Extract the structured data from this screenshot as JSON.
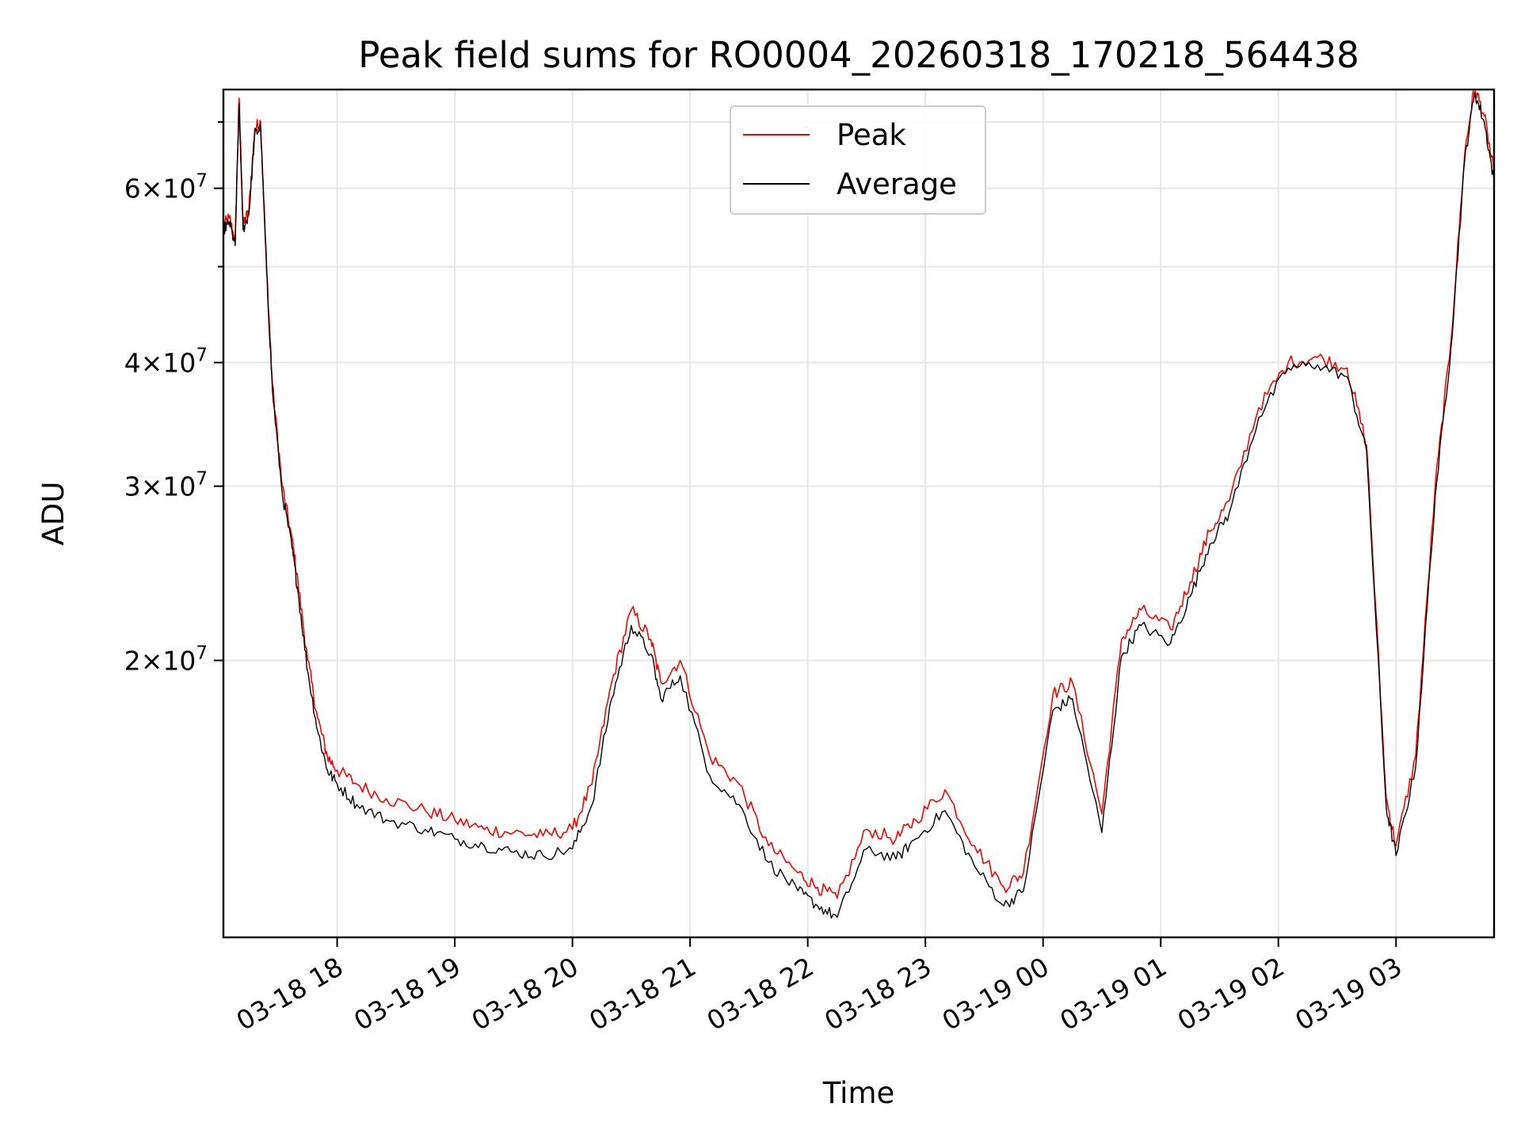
{
  "chart_data": {
    "type": "line",
    "title": "Peak field sums for RO0004_20260318_170218_564438",
    "xlabel": "Time",
    "ylabel": "ADU",
    "yscale": "log",
    "ylim": [
      10500000,
      75500000
    ],
    "xlim": [
      "03-18 17:02",
      "03-19 03:50"
    ],
    "grid": true,
    "legend_position": "top-center",
    "x_ticks": [
      "03-18 18",
      "03-18 19",
      "03-18 20",
      "03-18 21",
      "03-18 22",
      "03-18 23",
      "03-19 00",
      "03-19 01",
      "03-19 02",
      "03-19 03"
    ],
    "y_ticks": [
      {
        "value": 20000000,
        "mantissa": "2",
        "exponent": "7"
      },
      {
        "value": 30000000,
        "mantissa": "3",
        "exponent": "7"
      },
      {
        "value": 40000000,
        "mantissa": "4",
        "exponent": "7"
      },
      {
        "value": 60000000,
        "mantissa": "6",
        "exponent": "7"
      }
    ],
    "x": [
      "03-18 17:02",
      "03-18 17:05",
      "03-18 17:08",
      "03-18 17:10",
      "03-18 17:12",
      "03-18 17:15",
      "03-18 17:18",
      "03-18 17:21",
      "03-18 17:24",
      "03-18 17:27",
      "03-18 17:32",
      "03-18 17:37",
      "03-18 17:40",
      "03-18 17:45",
      "03-18 17:50",
      "03-18 17:55",
      "03-18 18:00",
      "03-18 18:10",
      "03-18 18:25",
      "03-18 18:45",
      "03-18 19:00",
      "03-18 19:15",
      "03-18 19:30",
      "03-18 19:45",
      "03-18 20:00",
      "03-18 20:10",
      "03-18 20:20",
      "03-18 20:30",
      "03-18 20:40",
      "03-18 20:45",
      "03-18 20:55",
      "03-18 21:10",
      "03-18 21:25",
      "03-18 21:40",
      "03-18 21:55",
      "03-18 22:05",
      "03-18 22:15",
      "03-18 22:30",
      "03-18 22:45",
      "03-18 22:55",
      "03-18 23:10",
      "03-18 23:25",
      "03-18 23:40",
      "03-18 23:50",
      "03-19 00:05",
      "03-19 00:15",
      "03-19 00:30",
      "03-19 00:40",
      "03-19 00:50",
      "03-19 01:05",
      "03-19 01:15",
      "03-19 01:25",
      "03-19 01:35",
      "03-19 01:50",
      "03-19 02:05",
      "03-19 02:20",
      "03-19 02:35",
      "03-19 02:45",
      "03-19 02:55",
      "03-19 03:00",
      "03-19 03:10",
      "03-19 03:20",
      "03-19 03:28",
      "03-19 03:35",
      "03-19 03:40",
      "03-19 03:45",
      "03-19 03:50"
    ],
    "series": [
      {
        "name": "Peak",
        "color": "#ff0000",
        "values": [
          55000000,
          56000000,
          53000000,
          74000000,
          55000000,
          57000000,
          69000000,
          70000000,
          50000000,
          38000000,
          30000000,
          26500000,
          24000000,
          20000000,
          17500000,
          16000000,
          15500000,
          15000000,
          14500000,
          14100000,
          13800000,
          13500000,
          13400000,
          13300000,
          13500000,
          15000000,
          19000000,
          22500000,
          21000000,
          19000000,
          20000000,
          16000000,
          15000000,
          13000000,
          12200000,
          11800000,
          11500000,
          13500000,
          13200000,
          13800000,
          14800000,
          13000000,
          11800000,
          12200000,
          18500000,
          19000000,
          14000000,
          21000000,
          22500000,
          21500000,
          24000000,
          27000000,
          29000000,
          36000000,
          40000000,
          40500000,
          39500000,
          33000000,
          14500000,
          13000000,
          16000000,
          30000000,
          42000000,
          65000000,
          76000000,
          71000000,
          62000000
        ]
      },
      {
        "name": "Average",
        "color": "#000000",
        "values": [
          54500000,
          55500000,
          52500000,
          73000000,
          54500000,
          56500000,
          68000000,
          69000000,
          49500000,
          37500000,
          29500000,
          26000000,
          23500000,
          19500000,
          17000000,
          15500000,
          15000000,
          14300000,
          13800000,
          13500000,
          13200000,
          13000000,
          12800000,
          12700000,
          12900000,
          14300000,
          18300000,
          21700000,
          20300000,
          18300000,
          19300000,
          15300000,
          14300000,
          12500000,
          11700000,
          11300000,
          11000000,
          12900000,
          12600000,
          13200000,
          14100000,
          12400000,
          11300000,
          11700000,
          17800000,
          18300000,
          13400000,
          20200000,
          21700000,
          20800000,
          23200000,
          26200000,
          28200000,
          35200000,
          39500000,
          39800000,
          38700000,
          32500000,
          14200000,
          12700000,
          15600000,
          29300000,
          41300000,
          64000000,
          75000000,
          70000000,
          61000000
        ]
      }
    ]
  }
}
